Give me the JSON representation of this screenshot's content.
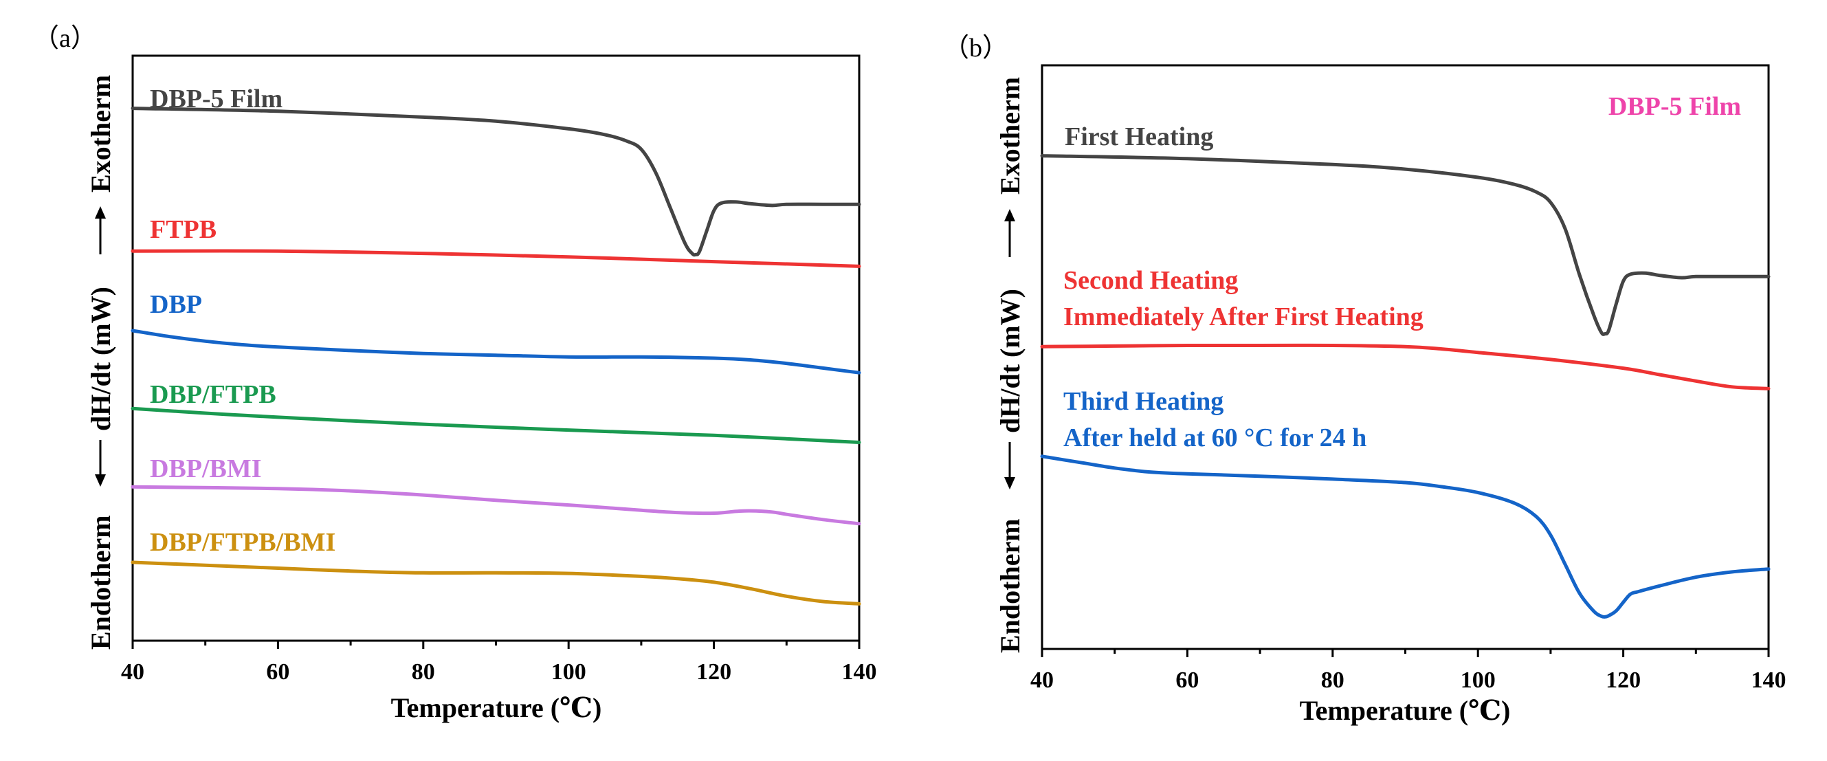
{
  "chart_data": [
    {
      "type": "line",
      "panel_label": "（a）",
      "xlabel": "Temperature (℃)",
      "ylabel": {
        "endotherm": "Endotherm",
        "middle": "dH/dt (mW)",
        "exotherm": "Exotherm"
      },
      "xlim": [
        40,
        140
      ],
      "ylim": [
        0,
        100
      ],
      "x_ticks": [
        40,
        60,
        80,
        100,
        120,
        140
      ],
      "y_ticks_shown": false,
      "grid": false,
      "series": [
        {
          "name": "DBP-5 Film",
          "label": "DBP-5 Film",
          "color": "#444444",
          "x": [
            40,
            60,
            80,
            90,
            100,
            105,
            108,
            110,
            112,
            114,
            116,
            117,
            117.5,
            118,
            119,
            120,
            121,
            123,
            125,
            128,
            130,
            135,
            140
          ],
          "y": [
            91,
            90.5,
            89.5,
            88.8,
            87.5,
            86.5,
            85.4,
            84,
            80,
            74,
            68,
            66.2,
            66.0,
            66.5,
            70,
            73.5,
            74.8,
            75.0,
            74.7,
            74.4,
            74.6,
            74.6,
            74.6
          ]
        },
        {
          "name": "FTPB",
          "label": "FTPB",
          "color": "#ee3333",
          "x": [
            40,
            60,
            80,
            100,
            120,
            140
          ],
          "y": [
            66.6,
            66.6,
            66.2,
            65.6,
            64.8,
            64.0
          ]
        },
        {
          "name": "DBP",
          "label": "DBP",
          "color": "#1464c8",
          "x": [
            40,
            45,
            50,
            55,
            60,
            70,
            80,
            90,
            100,
            110,
            120,
            125,
            130,
            135,
            140
          ],
          "y": [
            53.0,
            52.0,
            51.2,
            50.6,
            50.2,
            49.6,
            49.1,
            48.8,
            48.5,
            48.5,
            48.3,
            48.0,
            47.4,
            46.6,
            45.8
          ]
        },
        {
          "name": "DBP/FTPB",
          "label": "DBP/FTPB",
          "color": "#1a9a50",
          "x": [
            40,
            50,
            60,
            80,
            100,
            120,
            140
          ],
          "y": [
            39.7,
            38.9,
            38.2,
            37.0,
            36.0,
            35.1,
            33.9
          ]
        },
        {
          "name": "DBP/BMI",
          "label": "DBP/BMI",
          "color": "#c87ae0",
          "x": [
            40,
            60,
            70,
            80,
            90,
            100,
            110,
            115,
            120,
            123,
            125,
            128,
            130,
            135,
            140
          ],
          "y": [
            26.3,
            26.0,
            25.6,
            24.9,
            24.0,
            23.2,
            22.3,
            21.9,
            21.8,
            22.1,
            22.2,
            22.0,
            21.6,
            20.7,
            20.0
          ]
        },
        {
          "name": "DBP/FTPB/BMI",
          "label": "DBP/FTPB/BMI",
          "color": "#cc9010",
          "x": [
            40,
            50,
            60,
            70,
            80,
            90,
            100,
            110,
            115,
            120,
            125,
            130,
            135,
            140
          ],
          "y": [
            13.4,
            12.9,
            12.4,
            11.9,
            11.6,
            11.6,
            11.5,
            11.0,
            10.6,
            10.0,
            8.9,
            7.6,
            6.7,
            6.3
          ]
        }
      ]
    },
    {
      "type": "line",
      "panel_label": "（b）",
      "title": "DBP-5 Film",
      "title_color": "#ee44aa",
      "xlabel": "Temperature (℃)",
      "ylabel": {
        "endotherm": "Endotherm",
        "middle": "dH/dt (mW)",
        "exotherm": "Exotherm"
      },
      "xlim": [
        40,
        140
      ],
      "ylim": [
        0,
        100
      ],
      "x_ticks": [
        40,
        60,
        80,
        100,
        120,
        140
      ],
      "y_ticks_shown": false,
      "grid": false,
      "series": [
        {
          "name": "First Heating",
          "label_lines": [
            "First Heating"
          ],
          "color": "#444444",
          "x": [
            40,
            60,
            80,
            90,
            100,
            105,
            108,
            110,
            112,
            114,
            116,
            117,
            117.5,
            118,
            119,
            120,
            121,
            123,
            125,
            128,
            130,
            135,
            140
          ],
          "y": [
            84.5,
            84.0,
            83.0,
            82.2,
            80.8,
            79.6,
            78.3,
            76.5,
            72,
            64,
            57,
            54.2,
            54.0,
            54.6,
            59,
            63,
            64.2,
            64.4,
            64.0,
            63.6,
            63.8,
            63.8,
            63.8
          ]
        },
        {
          "name": "Second Heating",
          "label_lines": [
            "Second Heating",
            "Immediately After First Heating"
          ],
          "color": "#ee3333",
          "x": [
            40,
            50,
            60,
            70,
            80,
            90,
            95,
            100,
            110,
            120,
            125,
            130,
            135,
            140
          ],
          "y": [
            51.8,
            51.9,
            52.0,
            52.0,
            52.0,
            51.8,
            51.4,
            50.8,
            49.6,
            48.1,
            47.0,
            45.9,
            44.9,
            44.6
          ]
        },
        {
          "name": "Third Heating",
          "label_lines": [
            "Third Heating",
            "After held at 60 °C for 24 h"
          ],
          "color": "#1464c8",
          "x": [
            40,
            45,
            50,
            55,
            60,
            70,
            80,
            90,
            95,
            100,
            105,
            108,
            110,
            112,
            114,
            116,
            117,
            117.5,
            118,
            119,
            120,
            121,
            122,
            125,
            130,
            135,
            140
          ],
          "y": [
            33.0,
            32.0,
            31.0,
            30.3,
            30.0,
            29.6,
            29.1,
            28.5,
            27.8,
            26.8,
            25.0,
            22.7,
            19.5,
            14.5,
            9.5,
            6.4,
            5.6,
            5.5,
            5.7,
            6.5,
            8.0,
            9.4,
            9.8,
            10.8,
            12.3,
            13.2,
            13.7
          ]
        }
      ]
    }
  ]
}
